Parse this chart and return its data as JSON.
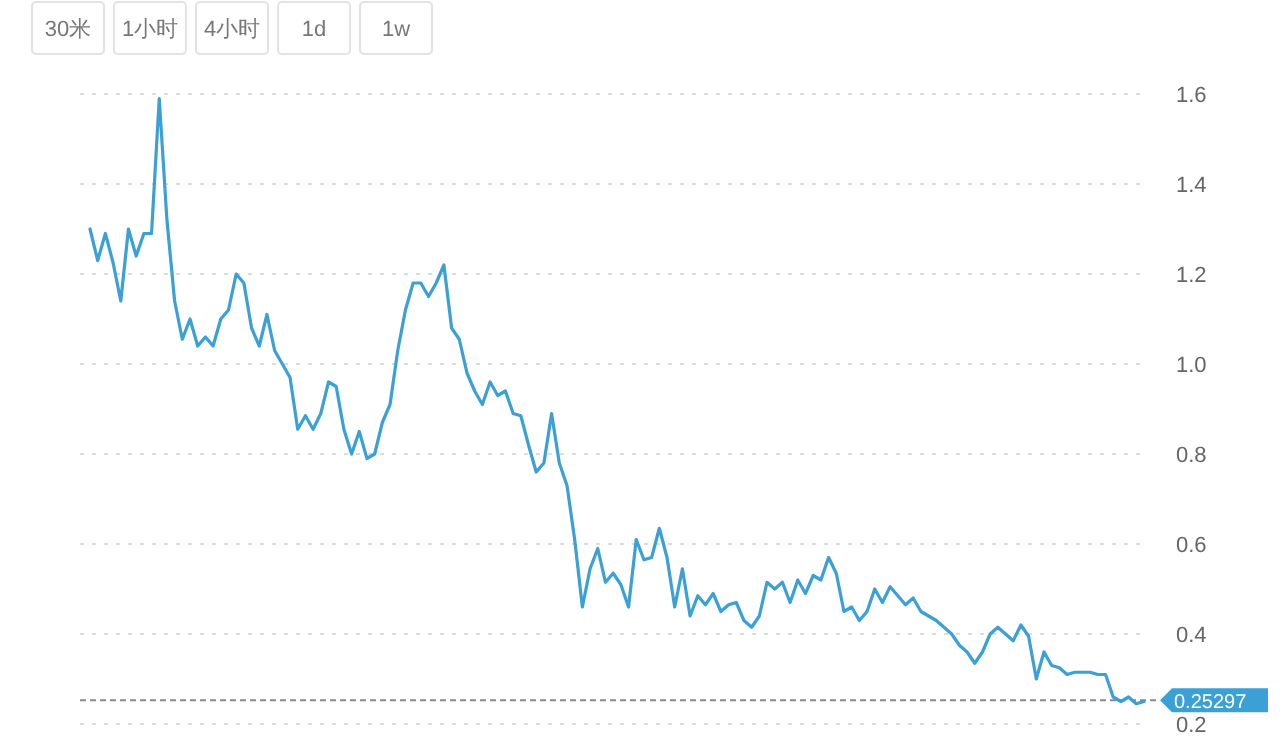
{
  "chart_data": {
    "type": "line",
    "annotations": [
      "30米",
      "1小时",
      "4小时",
      "1d",
      "1w"
    ],
    "categories": [
      null,
      null,
      null,
      null,
      null,
      null,
      null,
      null,
      null,
      null,
      null,
      null,
      null,
      null,
      null,
      null,
      null,
      null,
      null,
      null,
      null,
      null,
      null,
      null,
      null,
      null,
      null,
      null,
      null,
      null,
      null,
      null,
      null,
      null,
      null,
      null,
      null,
      null,
      null,
      null,
      null,
      null,
      null,
      null,
      null,
      null,
      null,
      null,
      null,
      null,
      null,
      null,
      null,
      null,
      null,
      null,
      null,
      null,
      null,
      null,
      null,
      null,
      null,
      null,
      null,
      null,
      null,
      null,
      null,
      null,
      null,
      null,
      null,
      null,
      null,
      null,
      null,
      null,
      null,
      null,
      null,
      null,
      null,
      null,
      null,
      null,
      null,
      null,
      null,
      null,
      null,
      null,
      null,
      null,
      null,
      null,
      null,
      null,
      null,
      null,
      null,
      null,
      null,
      null,
      null,
      null,
      null,
      null,
      null,
      null,
      null,
      null,
      null,
      null,
      null,
      null,
      null,
      null,
      null,
      null,
      null,
      null,
      null,
      null,
      null,
      null,
      null,
      null,
      null,
      null,
      null,
      null,
      null,
      null,
      null,
      null,
      null,
      null
    ],
    "series": [
      {
        "color": "#3ba0d6",
        "values": [
          1.3,
          1.23,
          1.29,
          1.225,
          1.14,
          1.3,
          1.24,
          1.29,
          1.29,
          1.59,
          1.32,
          1.14,
          1.055,
          1.1,
          1.04,
          1.06,
          1.04,
          1.1,
          1.12,
          1.2,
          1.18,
          1.08,
          1.04,
          1.11,
          1.03,
          1.0,
          0.97,
          0.855,
          0.885,
          0.855,
          0.89,
          0.96,
          0.95,
          0.855,
          0.8,
          0.85,
          0.79,
          0.8,
          0.87,
          0.91,
          1.03,
          1.12,
          1.18,
          1.18,
          1.15,
          1.18,
          1.22,
          1.08,
          1.055,
          0.98,
          0.94,
          0.91,
          0.96,
          0.93,
          0.94,
          0.89,
          0.885,
          0.82,
          0.76,
          0.78,
          0.89,
          0.78,
          0.73,
          0.61,
          0.46,
          0.545,
          0.59,
          0.515,
          0.535,
          0.51,
          0.46,
          0.61,
          0.565,
          0.57,
          0.635,
          0.57,
          0.46,
          0.545,
          0.44,
          0.485,
          0.465,
          0.49,
          0.45,
          0.465,
          0.47,
          0.43,
          0.415,
          0.44,
          0.515,
          0.5,
          0.515,
          0.47,
          0.52,
          0.49,
          0.53,
          0.52,
          0.57,
          0.535,
          0.45,
          0.46,
          0.43,
          0.45,
          0.5,
          0.47,
          0.505,
          0.485,
          0.465,
          0.48,
          0.45,
          0.44,
          0.43,
          0.415,
          0.4,
          0.375,
          0.36,
          0.335,
          0.36,
          0.4,
          0.415,
          0.4,
          0.385,
          0.42,
          0.395,
          0.3,
          0.36,
          0.33,
          0.325,
          0.31,
          0.315,
          0.315,
          0.315,
          0.31,
          0.31,
          0.26,
          0.25,
          0.26,
          0.245,
          0.25
        ]
      }
    ],
    "ylim": [
      0.2,
      1.6
    ],
    "yticks": [
      0.2,
      0.4,
      0.6,
      0.8,
      {
        "value": 1,
        "label": "1.0"
      },
      1.2,
      1.4,
      1.6
    ],
    "grid": "y",
    "tick_labels": "y",
    "line_style": "solid",
    "ref_lines": [
      {
        "axis": "y",
        "value": 0.25297,
        "label": "0.25297",
        "line_style": "dashed"
      }
    ]
  }
}
